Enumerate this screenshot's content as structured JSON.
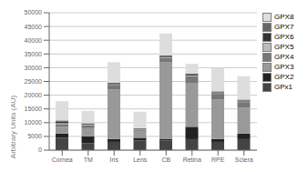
{
  "chart_data": {
    "type": "bar",
    "stacked": true,
    "ylabel": "Arbitrary Units (AU)",
    "categories": [
      "Cornea",
      "TM",
      "Iris",
      "Lens",
      "CB",
      "Retina",
      "RPE",
      "Sclera"
    ],
    "series": [
      {
        "name": "GPx1",
        "color": "#444444",
        "values": [
          4500,
          2500,
          3000,
          3500,
          3500,
          4000,
          3000,
          4000
        ]
      },
      {
        "name": "GPX2",
        "color": "#222222",
        "values": [
          1500,
          2500,
          1000,
          1000,
          500,
          4500,
          1000,
          2000
        ]
      },
      {
        "name": "GPX3",
        "color": "#999999",
        "values": [
          2500,
          3000,
          18000,
          2500,
          28000,
          16000,
          14500,
          9500
        ]
      },
      {
        "name": "GPX4",
        "color": "#777777",
        "values": [
          1000,
          1000,
          1500,
          500,
          1500,
          2500,
          2000,
          2000
        ]
      },
      {
        "name": "GPX5",
        "color": "#bbbbbb",
        "values": [
          300,
          200,
          200,
          100,
          200,
          200,
          200,
          200
        ]
      },
      {
        "name": "GPX6",
        "color": "#333333",
        "values": [
          500,
          300,
          300,
          200,
          300,
          300,
          300,
          300
        ]
      },
      {
        "name": "GPX7",
        "color": "#666666",
        "values": [
          500,
          300,
          500,
          200,
          500,
          400,
          400,
          400
        ]
      },
      {
        "name": "GPX8",
        "color": "#dddddd",
        "values": [
          7000,
          4500,
          7500,
          6000,
          8000,
          3500,
          8500,
          8500
        ]
      }
    ],
    "ylim": [
      0,
      50000
    ],
    "yticks": [
      0,
      5000,
      10000,
      15000,
      20000,
      25000,
      30000,
      35000,
      40000,
      45000,
      50000
    ],
    "grid": true,
    "legend": "right"
  }
}
